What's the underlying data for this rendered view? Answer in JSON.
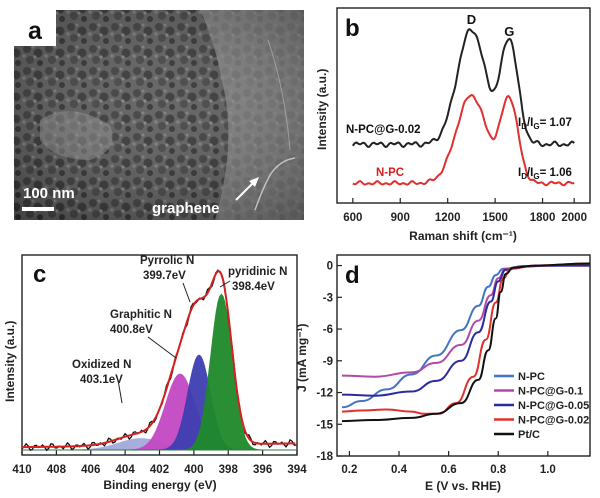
{
  "panels": {
    "a": {
      "label": "a",
      "scale_bar": "100 nm",
      "annotation": "graphene"
    },
    "b": {
      "label": "b"
    },
    "c": {
      "label": "c"
    },
    "d": {
      "label": "d"
    }
  },
  "chart_data": [
    {
      "id": "b",
      "type": "line",
      "title": "",
      "xlabel": "Raman shift (cm⁻¹)",
      "ylabel": "Intensity (a.u.)",
      "xlim": [
        500,
        2100
      ],
      "xticks": [
        600,
        900,
        1200,
        1500,
        1800,
        2000
      ],
      "peak_labels": [
        {
          "text": "D",
          "x": 1350
        },
        {
          "text": "G",
          "x": 1590
        }
      ],
      "series": [
        {
          "name": "N-PC@G-0.02",
          "color": "#222222",
          "ratio_text": "I_D/I_G= 1.07",
          "ratio_main": "I",
          "ratio_sub1": "D",
          "ratio_mid": "/I",
          "ratio_sub2": "G",
          "ratio_tail": "= 1.07",
          "baseline": 0.05,
          "peaks": [
            {
              "center": 1350,
              "height": 1.0,
              "width": 90
            },
            {
              "center": 1590,
              "height": 0.9,
              "width": 55
            }
          ]
        },
        {
          "name": "N-PC",
          "color": "#e03030",
          "ratio_text": "I_D/I_G= 1.06",
          "ratio_main": "I",
          "ratio_sub1": "D",
          "ratio_mid": "/I",
          "ratio_sub2": "G",
          "ratio_tail": "= 1.06",
          "baseline": 0.02,
          "peaks": [
            {
              "center": 1350,
              "height": 1.0,
              "width": 95
            },
            {
              "center": 1590,
              "height": 0.95,
              "width": 55
            }
          ]
        }
      ]
    },
    {
      "id": "c",
      "type": "area",
      "title": "",
      "xlabel": "Binding energy (eV)",
      "ylabel": "Intensity (a.u.)",
      "xlim": [
        410,
        394
      ],
      "xticks": [
        410,
        408,
        406,
        404,
        402,
        400,
        398,
        396,
        394
      ],
      "components": [
        {
          "name": "Oxidized N",
          "energy": "403.1eV",
          "center": 403.1,
          "height": 0.06,
          "width": 1.3,
          "color": "#9aa0d6"
        },
        {
          "name": "Graphitic N",
          "energy": "400.8eV",
          "center": 400.8,
          "height": 0.4,
          "width": 0.85,
          "color": "#c448c4"
        },
        {
          "name": "Pyrrolic N",
          "energy": "399.7eV",
          "center": 399.7,
          "height": 0.5,
          "width": 0.65,
          "color": "#3f3fb0"
        },
        {
          "name": "pyridinic N",
          "energy": "398.4eV",
          "center": 398.4,
          "height": 0.82,
          "width": 0.62,
          "color": "#1f8a2a"
        }
      ],
      "envelope_color": "#d42020"
    },
    {
      "id": "d",
      "type": "line",
      "title": "",
      "xlabel": "E (V vs. RHE)",
      "ylabel": "J (mA mg⁻¹)",
      "xlim": [
        0.15,
        1.17
      ],
      "ylim": [
        -18,
        1
      ],
      "xticks": [
        0.2,
        0.4,
        0.6,
        0.8,
        1.0
      ],
      "yticks": [
        0,
        -3,
        -6,
        -9,
        -12,
        -15,
        -18
      ],
      "legend_position": "bottom-right",
      "series": [
        {
          "name": "N-PC",
          "color": "#4472c4",
          "points": [
            [
              0.17,
              -13.4
            ],
            [
              0.25,
              -12.8
            ],
            [
              0.35,
              -11.7
            ],
            [
              0.45,
              -10.3
            ],
            [
              0.55,
              -8.5
            ],
            [
              0.65,
              -6.1
            ],
            [
              0.72,
              -3.8
            ],
            [
              0.76,
              -2.0
            ],
            [
              0.79,
              -0.9
            ],
            [
              0.82,
              -0.3
            ],
            [
              0.9,
              -0.05
            ],
            [
              1.0,
              0.0
            ],
            [
              1.1,
              0.05
            ],
            [
              1.17,
              0.05
            ]
          ]
        },
        {
          "name": "N-PC@G-0.1",
          "color": "#b04aa6",
          "points": [
            [
              0.17,
              -10.4
            ],
            [
              0.3,
              -10.5
            ],
            [
              0.45,
              -10.1
            ],
            [
              0.55,
              -9.2
            ],
            [
              0.65,
              -7.5
            ],
            [
              0.72,
              -5.2
            ],
            [
              0.77,
              -2.8
            ],
            [
              0.8,
              -1.2
            ],
            [
              0.83,
              -0.3
            ],
            [
              0.9,
              -0.05
            ],
            [
              1.0,
              0.0
            ],
            [
              1.17,
              0.0
            ]
          ]
        },
        {
          "name": "N-PC@G-0.05",
          "color": "#2b2b9e",
          "points": [
            [
              0.17,
              -12.2
            ],
            [
              0.3,
              -12.3
            ],
            [
              0.45,
              -11.9
            ],
            [
              0.55,
              -10.9
            ],
            [
              0.65,
              -9.0
            ],
            [
              0.72,
              -6.3
            ],
            [
              0.77,
              -3.4
            ],
            [
              0.8,
              -1.5
            ],
            [
              0.83,
              -0.4
            ],
            [
              0.9,
              -0.1
            ],
            [
              1.0,
              0.0
            ],
            [
              1.17,
              0.0
            ]
          ]
        },
        {
          "name": "N-PC@G-0.02",
          "color": "#e03030",
          "points": [
            [
              0.17,
              -13.8
            ],
            [
              0.25,
              -13.7
            ],
            [
              0.35,
              -13.6
            ],
            [
              0.45,
              -13.8
            ],
            [
              0.5,
              -14.0
            ],
            [
              0.56,
              -14.0
            ],
            [
              0.63,
              -13.0
            ],
            [
              0.7,
              -10.5
            ],
            [
              0.75,
              -7.0
            ],
            [
              0.79,
              -3.5
            ],
            [
              0.82,
              -1.2
            ],
            [
              0.85,
              -0.3
            ],
            [
              0.95,
              0.0
            ],
            [
              1.17,
              0.2
            ]
          ]
        },
        {
          "name": "Pt/C",
          "color": "#111111",
          "points": [
            [
              0.17,
              -14.7
            ],
            [
              0.3,
              -14.6
            ],
            [
              0.45,
              -14.4
            ],
            [
              0.55,
              -14.0
            ],
            [
              0.65,
              -13.0
            ],
            [
              0.72,
              -10.8
            ],
            [
              0.76,
              -8.0
            ],
            [
              0.79,
              -5.0
            ],
            [
              0.81,
              -2.5
            ],
            [
              0.83,
              -0.8
            ],
            [
              0.86,
              -0.2
            ],
            [
              0.95,
              0.0
            ],
            [
              1.17,
              0.2
            ]
          ]
        }
      ]
    }
  ]
}
